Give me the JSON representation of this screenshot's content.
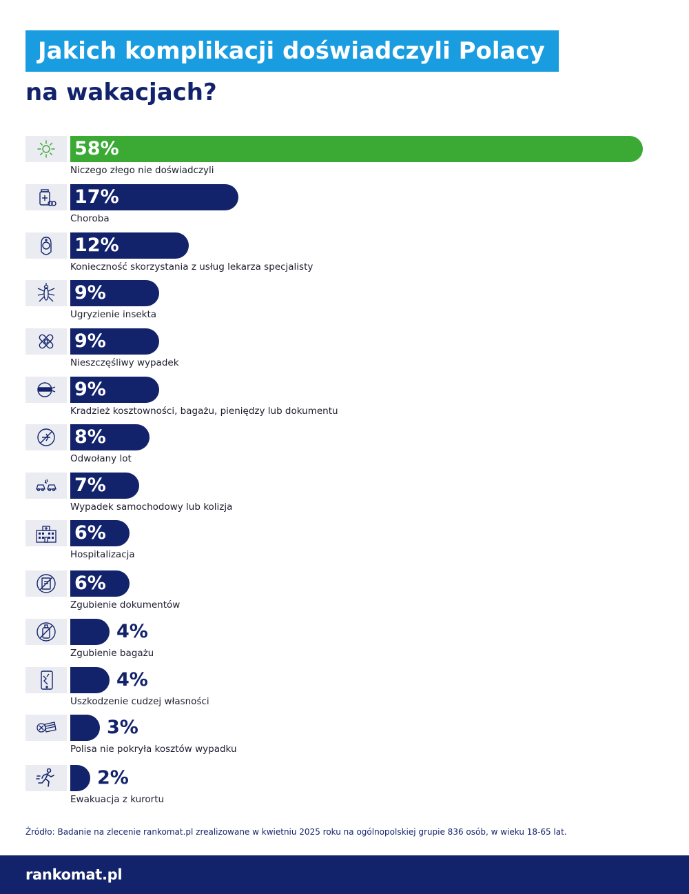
{
  "title": {
    "line1": "Jakich komplikacji doświadczyli Polacy",
    "line2": "na wakacjach?"
  },
  "colors": {
    "title_bg": "#1a9de0",
    "navy": "#13236b",
    "green": "#3aaa35",
    "icon_bg": "#eaecf1"
  },
  "chart_data": {
    "type": "bar",
    "orientation": "horizontal",
    "categories": [
      "Niczego złego nie doświadczyli",
      "Choroba",
      "Konieczność skorzystania z usług lekarza specjalisty",
      "Ugryzienie insekta",
      "Nieszczęśliwy wypadek",
      "Kradzież kosztowności, bagażu, pieniędzy lub dokumentu",
      "Odwołany lot",
      "Wypadek samochodowy lub kolizja",
      "Hospitalizacja",
      "Zgubienie dokumentów",
      "Zgubienie bagażu",
      "Uszkodzenie cudzej własności",
      "Polisa nie pokryła kosztów wypadku",
      "Ewakuacja z kurortu"
    ],
    "values": [
      58,
      17,
      12,
      9,
      9,
      9,
      8,
      7,
      6,
      6,
      4,
      4,
      3,
      2
    ],
    "value_labels": [
      "58%",
      "17%",
      "12%",
      "9%",
      "9%",
      "9%",
      "8%",
      "7%",
      "6%",
      "6%",
      "4%",
      "4%",
      "3%",
      "2%"
    ],
    "highlight_color": "#3aaa35",
    "bar_color": "#13236b",
    "icons": [
      "sun-icon",
      "medicine-icon",
      "nurse-icon",
      "mosquito-icon",
      "bandage-icon",
      "thief-icon",
      "plane-cancelled-icon",
      "car-crash-icon",
      "hospital-icon",
      "lost-document-icon",
      "lost-luggage-icon",
      "broken-phone-icon",
      "money-cross-icon",
      "running-man-icon"
    ],
    "xlim": [
      0,
      58
    ],
    "grid": false,
    "legend": "none"
  },
  "source": "Źródło:  Badanie na zlecenie rankomat.pl zrealizowane w kwietniu 2025 roku na ogólnopolskiej grupie 836 osób, w wieku 18-65 lat.",
  "footer": {
    "logo": "rankomat.pl"
  }
}
